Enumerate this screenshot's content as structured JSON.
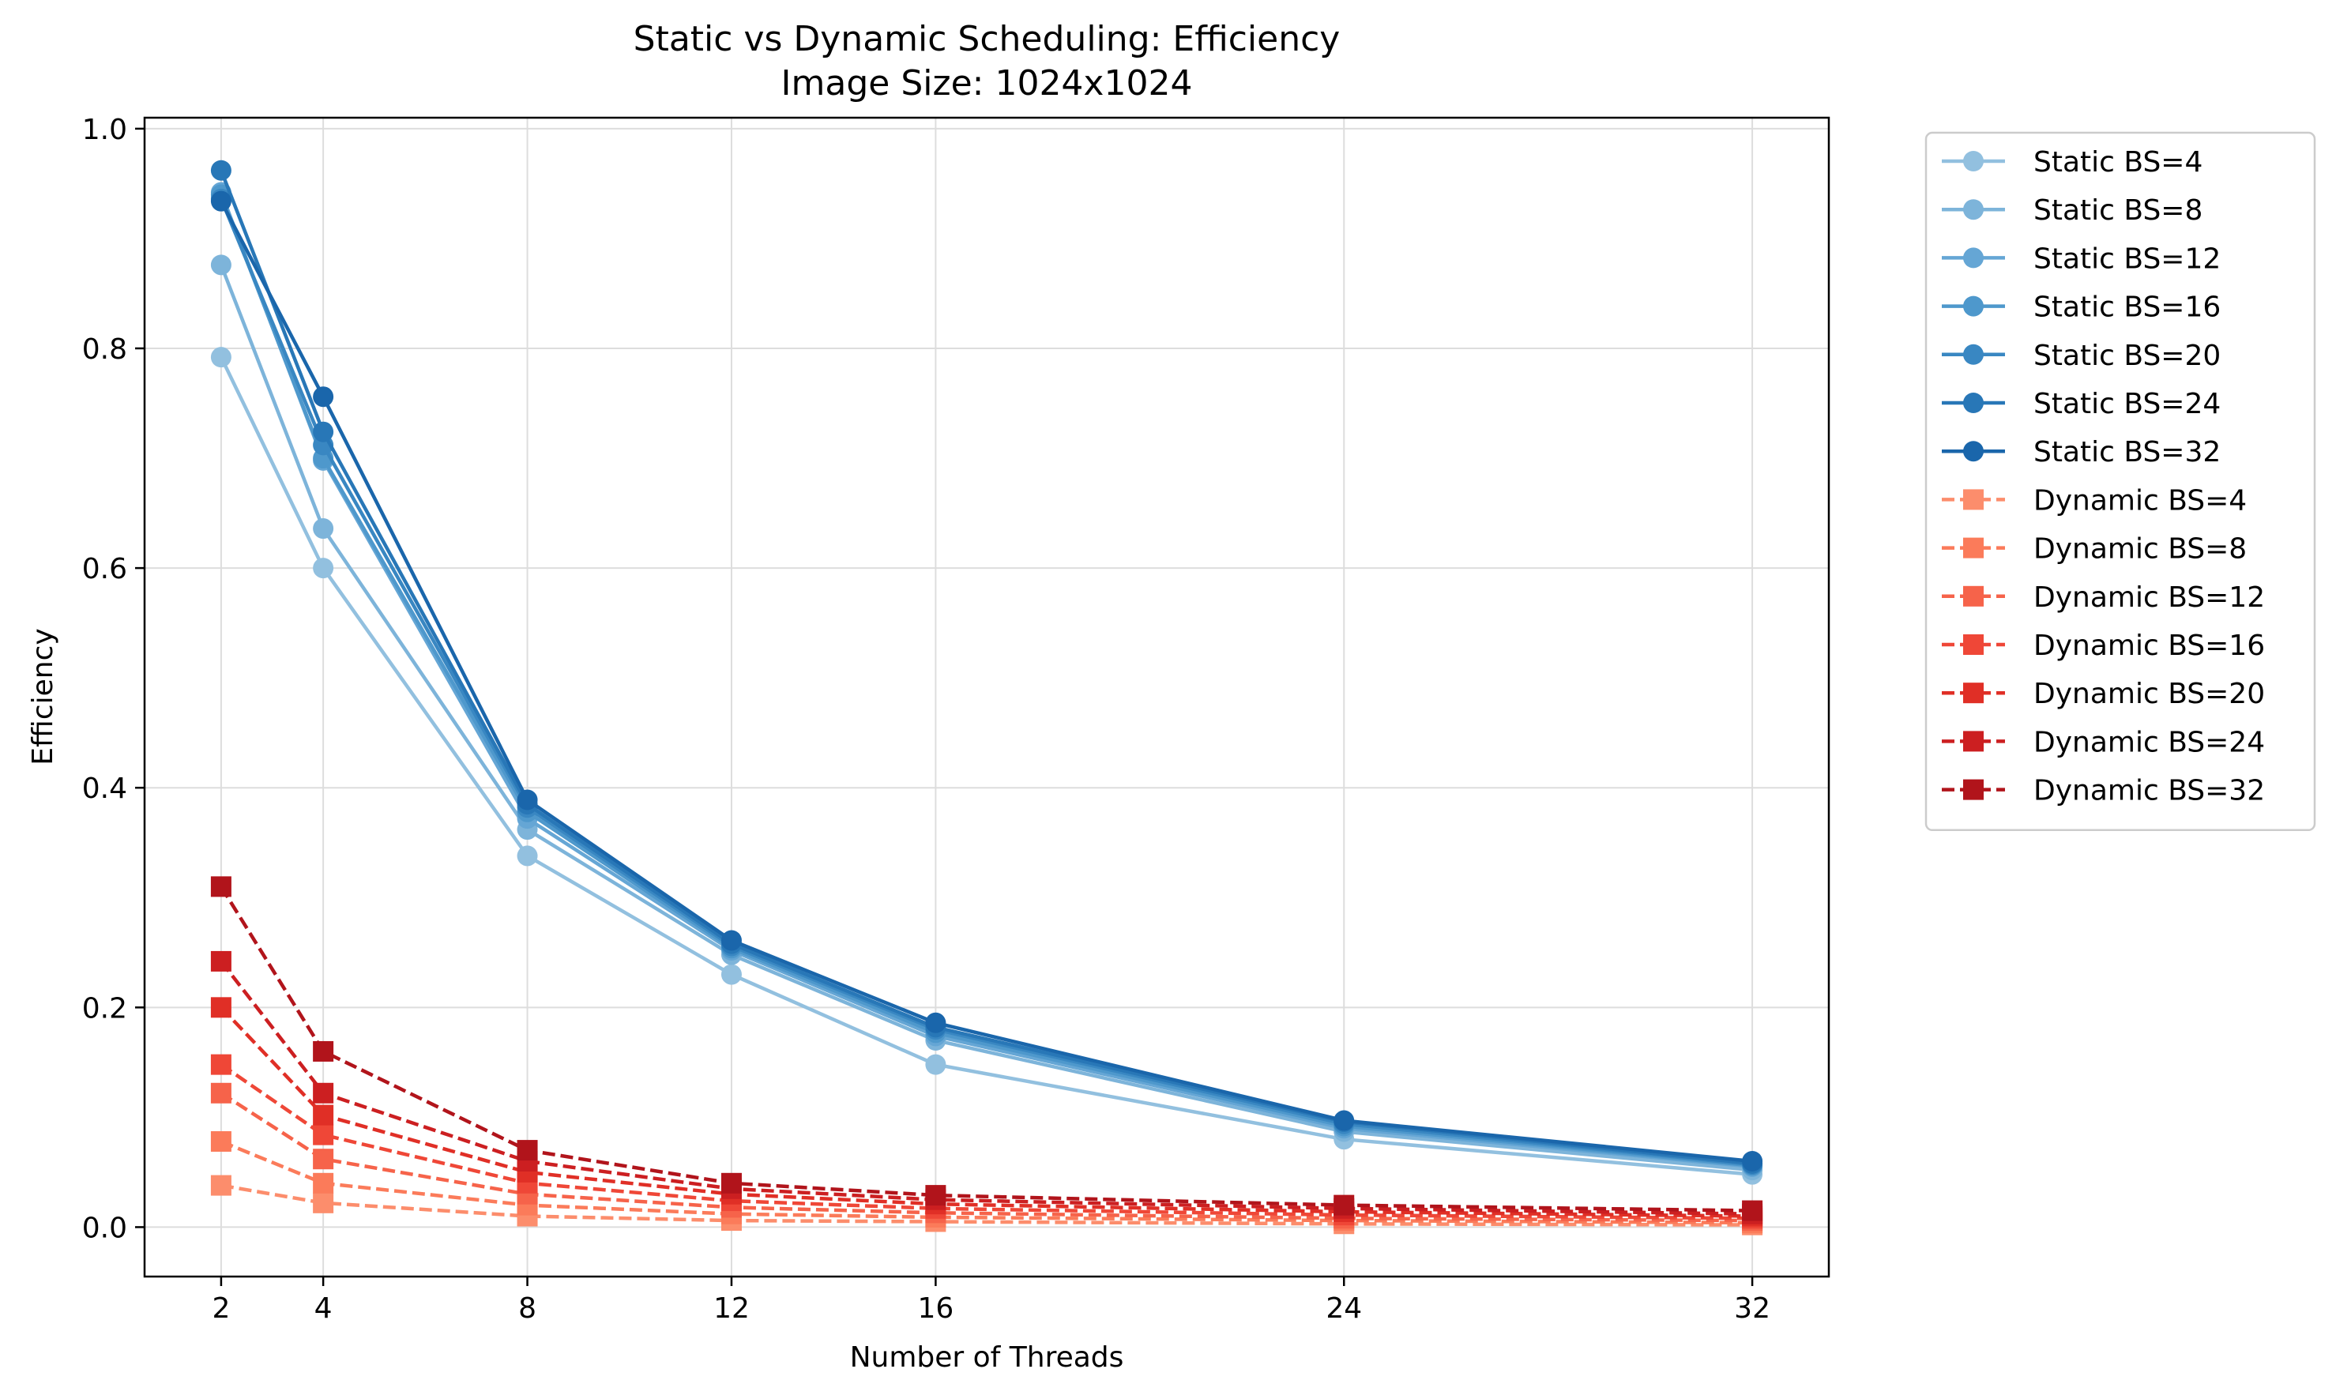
{
  "chart_data": {
    "type": "line",
    "title": "Static vs Dynamic Scheduling: Efficiency",
    "subtitle": "Image Size: 1024x1024",
    "xlabel": "Number of Threads",
    "ylabel": "Efficiency",
    "x": [
      2,
      4,
      8,
      12,
      16,
      24,
      32
    ],
    "x_ticks": [
      "2",
      "4",
      "8",
      "12",
      "16",
      "24",
      "32"
    ],
    "y_ticks": [
      "0.0",
      "0.2",
      "0.4",
      "0.6",
      "0.8",
      "1.0"
    ],
    "xlim": [
      0.5,
      33.5
    ],
    "ylim": [
      -0.045,
      1.01
    ],
    "grid": true,
    "legend_position": "outside-right",
    "series": [
      {
        "name": "Static BS=4",
        "style": "solid",
        "marker": "circle",
        "color": "#92c0df",
        "values": [
          0.792,
          0.6,
          0.338,
          0.23,
          0.148,
          0.08,
          0.048
        ]
      },
      {
        "name": "Static BS=8",
        "style": "solid",
        "marker": "circle",
        "color": "#7db4da",
        "values": [
          0.876,
          0.636,
          0.362,
          0.248,
          0.17,
          0.087,
          0.052
        ]
      },
      {
        "name": "Static BS=12",
        "style": "solid",
        "marker": "circle",
        "color": "#65a6d5",
        "values": [
          0.942,
          0.698,
          0.372,
          0.252,
          0.174,
          0.09,
          0.055
        ]
      },
      {
        "name": "Static BS=16",
        "style": "solid",
        "marker": "circle",
        "color": "#4e98cc",
        "values": [
          0.94,
          0.7,
          0.378,
          0.254,
          0.177,
          0.092,
          0.056
        ]
      },
      {
        "name": "Static BS=20",
        "style": "solid",
        "marker": "circle",
        "color": "#3987c2",
        "values": [
          0.936,
          0.712,
          0.382,
          0.256,
          0.18,
          0.094,
          0.057
        ]
      },
      {
        "name": "Static BS=24",
        "style": "solid",
        "marker": "circle",
        "color": "#2877b7",
        "values": [
          0.962,
          0.724,
          0.385,
          0.258,
          0.182,
          0.096,
          0.058
        ]
      },
      {
        "name": "Static BS=32",
        "style": "solid",
        "marker": "circle",
        "color": "#1a66ab",
        "values": [
          0.934,
          0.756,
          0.389,
          0.261,
          0.186,
          0.097,
          0.06
        ]
      },
      {
        "name": "Dynamic BS=4",
        "style": "dashed",
        "marker": "square",
        "color": "#fc8d6c",
        "values": [
          0.038,
          0.022,
          0.01,
          0.006,
          0.005,
          0.003,
          0.002
        ]
      },
      {
        "name": "Dynamic BS=8",
        "style": "dashed",
        "marker": "square",
        "color": "#fb7b5a",
        "values": [
          0.078,
          0.04,
          0.02,
          0.012,
          0.009,
          0.006,
          0.004
        ]
      },
      {
        "name": "Dynamic BS=12",
        "style": "dashed",
        "marker": "square",
        "color": "#f6634a",
        "values": [
          0.122,
          0.062,
          0.03,
          0.018,
          0.013,
          0.008,
          0.006
        ]
      },
      {
        "name": "Dynamic BS=16",
        "style": "dashed",
        "marker": "square",
        "color": "#ef4737",
        "values": [
          0.148,
          0.084,
          0.04,
          0.024,
          0.017,
          0.011,
          0.008
        ]
      },
      {
        "name": "Dynamic BS=20",
        "style": "dashed",
        "marker": "square",
        "color": "#e02f26",
        "values": [
          0.2,
          0.102,
          0.05,
          0.03,
          0.021,
          0.014,
          0.01
        ]
      },
      {
        "name": "Dynamic BS=24",
        "style": "dashed",
        "marker": "square",
        "color": "#cc1f21",
        "values": [
          0.242,
          0.122,
          0.06,
          0.035,
          0.025,
          0.017,
          0.012
        ]
      },
      {
        "name": "Dynamic BS=32",
        "style": "dashed",
        "marker": "square",
        "color": "#b1141b",
        "values": [
          0.31,
          0.16,
          0.07,
          0.04,
          0.029,
          0.02,
          0.015
        ]
      }
    ]
  }
}
